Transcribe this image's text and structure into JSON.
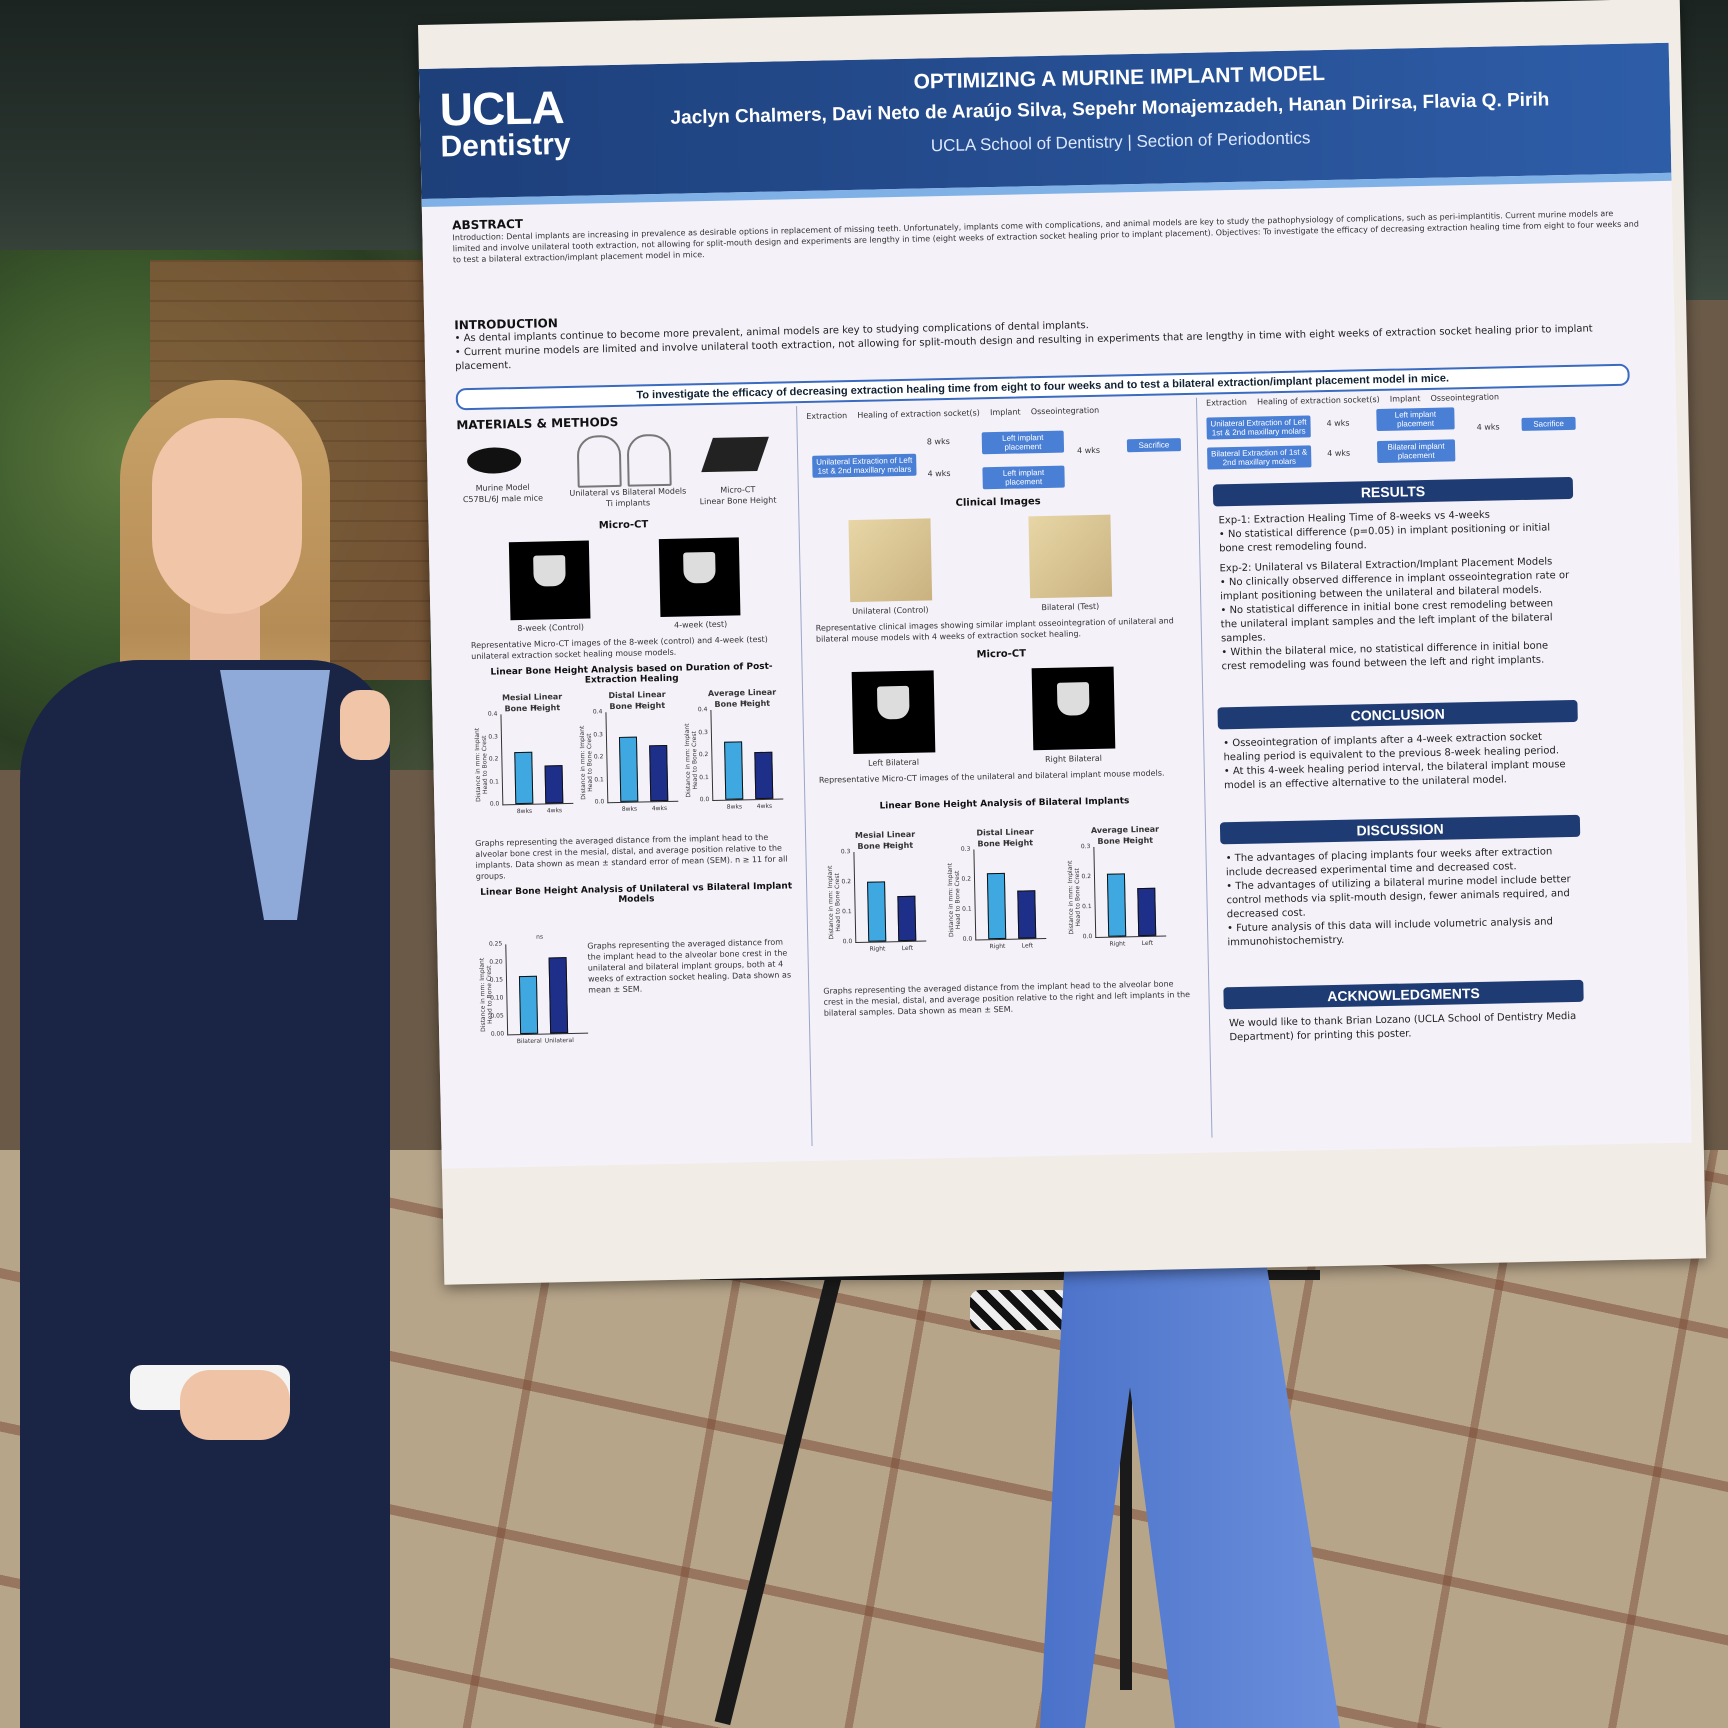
{
  "poster": {
    "logo_line1": "UCLA",
    "logo_line2": "Dentistry",
    "title": "OPTIMIZING A MURINE IMPLANT MODEL",
    "authors": "Jaclyn Chalmers, Davi Neto de Araújo Silva, Sepehr Monajemzadeh, Hanan Dirirsa, Flavia Q. Pirih",
    "affiliation": "UCLA School of Dentistry | Section of Periodontics",
    "abstract_heading": "ABSTRACT",
    "abstract_text": "Introduction: Dental implants are increasing in prevalence as desirable options in replacement of missing teeth. Unfortunately, implants come with complications, and animal models are key to study the pathophysiology of complications, such as peri-implantitis. Current murine models are limited and involve unilateral tooth extraction, not allowing for split-mouth design and experiments are lengthy in time (eight weeks of extraction socket healing prior to implant placement). Objectives: To investigate the efficacy of decreasing extraction healing time from eight to four weeks and to test a bilateral extraction/implant placement model in mice.",
    "intro_heading": "INTRODUCTION",
    "intro_bullets": [
      "As dental implants continue to become more prevalent, animal models are key to studying complications of dental implants.",
      "Current murine models are limited and involve unilateral tooth extraction, not allowing for split-mouth design and resulting in experiments that are lengthy in time with eight weeks of extraction socket healing prior to implant placement."
    ],
    "objective_banner": "To investigate the efficacy of decreasing extraction healing time from eight to four weeks and to test a bilateral extraction/implant placement model in mice.",
    "methods_heading": "MATERIALS & METHODS",
    "methods_items": [
      "Murine Model",
      "C57BL/6J male mice",
      "Unilateral vs Bilateral Models",
      "Ti implants",
      "Micro-CT",
      "Linear Bone Height"
    ],
    "flow_labels": [
      "Extraction",
      "Healing of extraction socket(s)",
      "Implant",
      "Osseointegration"
    ],
    "flow_left": {
      "extraction": "Unilateral Extraction of Left 1st & 2nd maxillary molars",
      "implant_top": "Left implant placement",
      "implant_bottom": "Left implant placement",
      "weeks_top": "8 wks",
      "weeks_bottom": "4 wks",
      "osseo": "4 wks",
      "end": "Sacrifice"
    },
    "flow_right": {
      "extraction_top": "Unilateral Extraction of Left 1st & 2nd maxillary molars",
      "extraction_bottom": "Bilateral Extraction of 1st & 2nd maxillary molars",
      "implant_top": "Left implant placement",
      "implant_bottom": "Bilateral implant placement",
      "weeks": "4 wks",
      "osseo": "4 wks",
      "end": "Sacrifice"
    },
    "microct_heading": "Micro-CT",
    "microct_labels": [
      "8-week (Control)",
      "4-week (test)"
    ],
    "microct_caption": "Representative Micro-CT images of the 8-week (control) and 4-week (test) unilateral extraction socket healing mouse models.",
    "lbh_heading": "Linear Bone Height Analysis based on Duration of Post-Extraction Healing",
    "lbh_chart_titles": [
      "Mesial Linear Bone Height",
      "Distal Linear Bone Height",
      "Average Linear Bone Height"
    ],
    "lbh_caption": "Graphs representing the averaged distance from the implant head to the alveolar bone crest in the mesial, distal, and average position relative to the implants. Data shown as mean ± standard error of mean (SEM). n ≥ 11 for all groups.",
    "uvb_heading": "Linear Bone Height Analysis of Unilateral vs Bilateral Implant Models",
    "uvb_caption": "Graphs representing the averaged distance from the implant head to the alveolar bone crest in the unilateral and bilateral implant groups, both at 4 weeks of extraction socket healing. Data shown as mean ± SEM.",
    "clinical_heading": "Clinical Images",
    "clinical_labels": [
      "Unilateral (Control)",
      "Bilateral (Test)"
    ],
    "clinical_caption": "Representative clinical images showing similar implant osseointegration of unilateral and bilateral mouse models with 4 weeks of extraction socket healing.",
    "microct2_heading": "Micro-CT",
    "microct2_labels": [
      "Left Bilateral",
      "Right Bilateral"
    ],
    "microct2_caption": "Representative Micro-CT images of the unilateral and bilateral implant mouse models.",
    "bil_heading": "Linear Bone Height Analysis of Bilateral Implants",
    "bil_chart_titles": [
      "Mesial Linear Bone Height",
      "Distal Linear Bone Height",
      "Average Linear Bone Height"
    ],
    "bil_caption": "Graphs representing the averaged distance from the implant head to the alveolar bone crest in the mesial, distal, and average position relative to the right and left implants in the bilateral samples. Data shown as mean ± SEM.",
    "y_axis_label": "Distance in mm: Implant Head to Bone Crest",
    "ns_label": "ns",
    "results_heading": "RESULTS",
    "results_exp1_title": "Exp-1: Extraction Healing Time of 8-weeks vs 4-weeks",
    "results_exp1_bullets": [
      "No statistical difference (p=0.05) in implant positioning or initial bone crest remodeling found."
    ],
    "results_exp2_title": "Exp-2: Unilateral vs Bilateral Extraction/Implant Placement Models",
    "results_exp2_bullets": [
      "No clinically observed difference in implant osseointegration rate or implant positioning between the unilateral and bilateral models.",
      "No statistical difference in initial bone crest remodeling between the unilateral implant samples and the left implant of the bilateral samples.",
      "Within the bilateral mice, no statistical difference in initial bone crest remodeling was found between the left and right implants."
    ],
    "conclusion_heading": "CONCLUSION",
    "conclusion_bullets": [
      "Osseointegration of implants after a 4-week extraction socket healing period is equivalent to the previous 8-week healing period.",
      "At this 4-week healing period interval, the bilateral implant mouse model is an effective alternative to the unilateral model."
    ],
    "discussion_heading": "DISCUSSION",
    "discussion_bullets": [
      "The advantages of placing implants four weeks after extraction include decreased experimental time and decreased cost.",
      "The advantages of utilizing a bilateral murine model include better control methods via split-mouth design, fewer animals required, and decreased cost.",
      "Future analysis of this data will include volumetric analysis and immunohistochemistry."
    ],
    "ack_heading": "ACKNOWLEDGMENTS",
    "ack_text": "We would like to thank Brian Lozano (UCLA School of Dentistry Media Department) for printing this poster."
  },
  "charts": {
    "lbh": [
      {
        "categories": [
          "8wks",
          "4wks"
        ],
        "values": [
          0.23,
          0.17
        ],
        "ylim": [
          0,
          0.4
        ],
        "ticks": [
          "0.0",
          "0.1",
          "0.2",
          "0.3",
          "0.4"
        ]
      },
      {
        "categories": [
          "8wks",
          "4wks"
        ],
        "values": [
          0.29,
          0.25
        ],
        "ylim": [
          0,
          0.4
        ],
        "ticks": [
          "0.0",
          "0.1",
          "0.2",
          "0.3",
          "0.4"
        ]
      },
      {
        "categories": [
          "8wks",
          "4wks"
        ],
        "values": [
          0.26,
          0.21
        ],
        "ylim": [
          0,
          0.4
        ],
        "ticks": [
          "0.0",
          "0.1",
          "0.2",
          "0.3",
          "0.4"
        ]
      }
    ],
    "uvb": {
      "categories": [
        "Bilateral",
        "Unilateral"
      ],
      "values": [
        0.16,
        0.21
      ],
      "ylim": [
        0,
        0.25
      ],
      "ticks": [
        "0.00",
        "0.05",
        "0.10",
        "0.15",
        "0.20",
        "0.25"
      ]
    },
    "bil": [
      {
        "categories": [
          "Right",
          "Left"
        ],
        "values": [
          0.2,
          0.15
        ],
        "ylim": [
          0,
          0.3
        ],
        "ticks": [
          "0.0",
          "0.1",
          "0.2",
          "0.3"
        ]
      },
      {
        "categories": [
          "Right",
          "Left"
        ],
        "values": [
          0.22,
          0.16
        ],
        "ylim": [
          0,
          0.3
        ],
        "ticks": [
          "0.0",
          "0.1",
          "0.2",
          "0.3"
        ]
      },
      {
        "categories": [
          "Right",
          "Left"
        ],
        "values": [
          0.21,
          0.16
        ],
        "ylim": [
          0,
          0.3
        ],
        "ticks": [
          "0.0",
          "0.1",
          "0.2",
          "0.3"
        ]
      }
    ],
    "colors": {
      "first": "#3fa8e0",
      "second": "#1e2f8a"
    }
  }
}
